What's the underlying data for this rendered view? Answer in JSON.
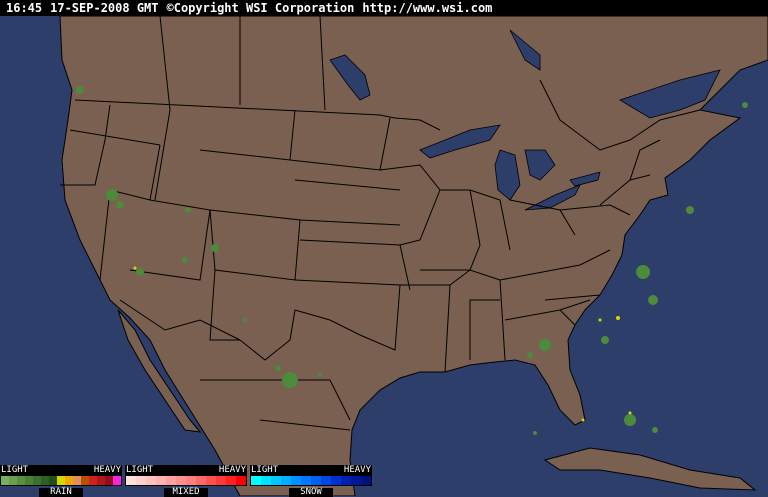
{
  "header": {
    "time": "16:45",
    "date": "17-SEP-2008 GMT",
    "copyright": "©Copyright WSI Corporation",
    "url": "http://www.wsi.com"
  },
  "colors": {
    "ocean": "#2e3e6a",
    "land": "#7a6050",
    "borders": "#000000",
    "radar_light": "#4c8a3c"
  },
  "legend": [
    {
      "name": "RAIN",
      "light": "LIGHT",
      "heavy": "HEAVY",
      "colors": [
        "#78b060",
        "#68a050",
        "#589040",
        "#4a8038",
        "#3c7030",
        "#2e6024",
        "#205018",
        "#d8d800",
        "#f0a800",
        "#e09060",
        "#b85000",
        "#d02020",
        "#b01818",
        "#901020",
        "#ff20e0"
      ]
    },
    {
      "name": "MIXED",
      "light": "LIGHT",
      "heavy": "HEAVY",
      "colors": [
        "#ffe0e0",
        "#ffd0d0",
        "#ffc0c0",
        "#ffb0b0",
        "#ffa0a0",
        "#ff9090",
        "#ff8080",
        "#ff6868",
        "#ff5050",
        "#ff3838",
        "#ff2020",
        "#ff0000"
      ]
    },
    {
      "name": "SNOW",
      "light": "LIGHT",
      "heavy": "HEAVY",
      "colors": [
        "#00ffff",
        "#00e0ff",
        "#00c8ff",
        "#00b0ff",
        "#0090ff",
        "#0078ff",
        "#0060f0",
        "#0048e0",
        "#0030d0",
        "#0020b0",
        "#001898",
        "#001080"
      ]
    }
  ]
}
